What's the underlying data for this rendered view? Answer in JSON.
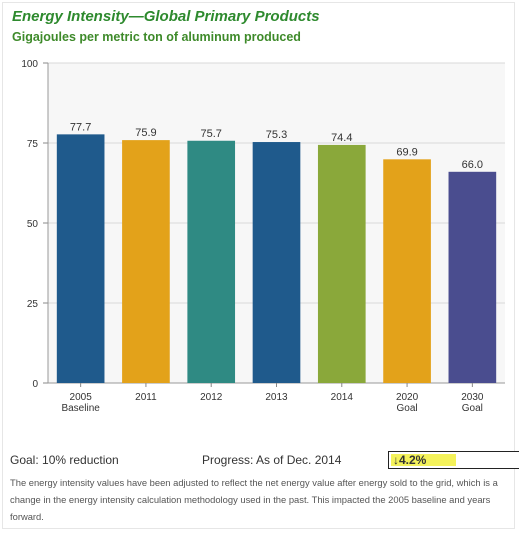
{
  "header": {
    "title": "Energy Intensity—Global Primary Products",
    "subtitle": "Gigajoules per metric ton of aluminum produced"
  },
  "chart_data": {
    "type": "bar",
    "categories": [
      "2005\nBaseline",
      "2011",
      "2012",
      "2013",
      "2014",
      "2020\nGoal",
      "2030\nGoal"
    ],
    "values": [
      77.7,
      75.9,
      75.7,
      75.3,
      74.4,
      69.9,
      66.0
    ],
    "value_labels": [
      "77.7",
      "75.9",
      "75.7",
      "75.3",
      "74.4",
      "69.9",
      "66.0"
    ],
    "colors": [
      "#1f5a8c",
      "#e3a21a",
      "#2f8a83",
      "#1f5a8c",
      "#8aa83a",
      "#e3a21a",
      "#4a4d8f"
    ],
    "ylim": [
      0,
      100
    ],
    "yticks": [
      0,
      25,
      50,
      75,
      100
    ],
    "ytick_labels": [
      "0",
      "25",
      "50",
      "75",
      "100"
    ],
    "grid": true,
    "xlabel": "",
    "ylabel": ""
  },
  "footer": {
    "goal_text": "Goal: 10% reduction",
    "progress_label": "Progress: As of Dec. 2014",
    "progress_value": "↓4.2%",
    "progress_fraction": 0.5,
    "note": "The energy intensity values have been adjusted to reflect the net energy value after energy sold to the grid, which is a change in the energy intensity calculation methodology used in the past. This impacted the 2005 baseline and years forward."
  }
}
